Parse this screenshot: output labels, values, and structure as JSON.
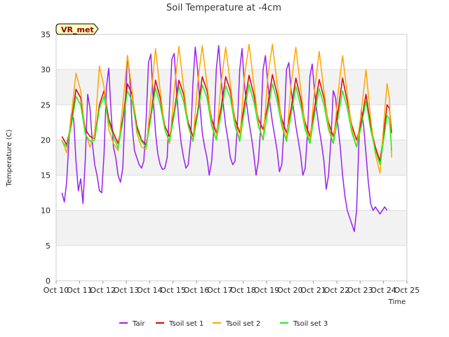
{
  "chart_data": {
    "type": "line",
    "title": "Soil Temperature at -4cm",
    "xlabel": "Time",
    "ylabel": "Temperature (C)",
    "site_badge": "VR_met",
    "ylim": [
      0,
      35
    ],
    "yticks": [
      0,
      5,
      10,
      15,
      20,
      25,
      30,
      35
    ],
    "xlim": [
      10,
      25
    ],
    "xticks": [
      10,
      11,
      12,
      13,
      14,
      15,
      16,
      17,
      18,
      19,
      20,
      21,
      22,
      23,
      24,
      25
    ],
    "xtick_labels": [
      "Oct 10",
      "Oct 11",
      "Oct 12",
      "Oct 13",
      "Oct 14",
      "Oct 15",
      "Oct 16",
      "Oct 17",
      "Oct 18",
      "Oct 19",
      "Oct 20",
      "Oct 21",
      "Oct 22",
      "Oct 23",
      "Oct 24",
      "Oct 25"
    ],
    "shaded_bands": [
      [
        5,
        10
      ],
      [
        15,
        20
      ],
      [
        25,
        30
      ]
    ],
    "legend_position": "bottom",
    "series": [
      {
        "name": "Tair",
        "color": "#9b1ff0",
        "x": [
          10.25,
          10.35,
          10.45,
          10.55,
          10.65,
          10.75,
          10.85,
          10.95,
          11.05,
          11.15,
          11.25,
          11.35,
          11.45,
          11.55,
          11.65,
          11.75,
          11.85,
          11.95,
          12.05,
          12.15,
          12.25,
          12.35,
          12.45,
          12.55,
          12.65,
          12.75,
          12.85,
          12.95,
          13.05,
          13.15,
          13.25,
          13.35,
          13.45,
          13.55,
          13.65,
          13.75,
          13.85,
          13.95,
          14.05,
          14.15,
          14.25,
          14.35,
          14.45,
          14.55,
          14.65,
          14.75,
          14.85,
          14.95,
          15.05,
          15.15,
          15.25,
          15.35,
          15.45,
          15.55,
          15.65,
          15.75,
          15.85,
          15.95,
          16.05,
          16.15,
          16.25,
          16.35,
          16.45,
          16.55,
          16.65,
          16.75,
          16.85,
          16.95,
          17.05,
          17.15,
          17.25,
          17.35,
          17.45,
          17.55,
          17.65,
          17.75,
          17.85,
          17.95,
          18.05,
          18.15,
          18.25,
          18.35,
          18.45,
          18.55,
          18.65,
          18.75,
          18.85,
          18.95,
          19.05,
          19.15,
          19.25,
          19.35,
          19.45,
          19.55,
          19.65,
          19.75,
          19.85,
          19.95,
          20.05,
          20.15,
          20.25,
          20.35,
          20.45,
          20.55,
          20.65,
          20.75,
          20.85,
          20.95,
          21.05,
          21.15,
          21.25,
          21.35,
          21.45,
          21.55,
          21.65,
          21.75,
          21.85,
          21.95,
          22.05,
          22.15,
          22.25,
          22.35,
          22.45,
          22.55,
          22.65,
          22.75,
          22.85,
          22.95,
          23.05,
          23.15,
          23.25,
          23.35,
          23.45,
          23.55,
          23.65,
          23.75,
          23.85,
          23.95,
          24.05,
          24.15
        ],
        "y": [
          12.5,
          11.2,
          14.0,
          20.0,
          23.8,
          23.0,
          17.0,
          12.8,
          14.5,
          11.0,
          17.5,
          26.5,
          24.5,
          19.5,
          16.5,
          15.0,
          12.8,
          12.5,
          18.0,
          27.5,
          30.2,
          24.0,
          19.0,
          17.5,
          15.0,
          14.0,
          16.0,
          24.0,
          32.0,
          29.0,
          22.0,
          18.5,
          17.5,
          16.5,
          16.0,
          17.0,
          23.0,
          31.0,
          32.2,
          26.0,
          21.0,
          18.0,
          16.5,
          15.8,
          16.0,
          17.5,
          25.0,
          31.5,
          32.3,
          27.0,
          22.5,
          19.5,
          17.5,
          16.0,
          16.5,
          20.0,
          28.0,
          33.2,
          30.0,
          25.0,
          21.0,
          19.0,
          17.5,
          15.0,
          17.0,
          22.0,
          30.0,
          33.4,
          29.0,
          25.0,
          22.0,
          20.0,
          17.5,
          16.5,
          17.0,
          22.0,
          30.0,
          33.0,
          28.0,
          25.0,
          22.5,
          20.5,
          18.0,
          15.0,
          17.0,
          22.0,
          30.0,
          32.0,
          28.0,
          25.0,
          22.5,
          20.5,
          18.5,
          15.5,
          16.5,
          22.0,
          30.0,
          31.0,
          27.0,
          24.5,
          22.0,
          20.0,
          18.0,
          15.0,
          16.0,
          21.0,
          29.0,
          30.8,
          27.0,
          24.0,
          21.5,
          19.5,
          17.0,
          13.0,
          15.0,
          20.0,
          27.0,
          26.0,
          22.0,
          19.0,
          15.0,
          12.0,
          10.0,
          9.0,
          8.0,
          7.0,
          10.0,
          20.0,
          24.3,
          22.0,
          18.0,
          14.0,
          11.0,
          10.0,
          10.5,
          10.0,
          9.5,
          10.0,
          10.5,
          10.0
        ],
        "note": ""
      },
      {
        "name": "Tsoil set 1",
        "color": "#e00000",
        "x": [
          10.25,
          10.45,
          10.65,
          10.85,
          11.05,
          11.25,
          11.45,
          11.65,
          11.85,
          12.05,
          12.25,
          12.45,
          12.65,
          12.85,
          13.05,
          13.25,
          13.45,
          13.65,
          13.85,
          14.05,
          14.25,
          14.45,
          14.65,
          14.85,
          15.05,
          15.25,
          15.45,
          15.65,
          15.85,
          16.05,
          16.25,
          16.45,
          16.65,
          16.85,
          17.05,
          17.25,
          17.45,
          17.65,
          17.85,
          18.05,
          18.25,
          18.45,
          18.65,
          18.85,
          19.05,
          19.25,
          19.45,
          19.65,
          19.85,
          20.05,
          20.25,
          20.45,
          20.65,
          20.85,
          21.05,
          21.25,
          21.45,
          21.65,
          21.85,
          22.05,
          22.25,
          22.45,
          22.65,
          22.85,
          23.05,
          23.25,
          23.45,
          23.65,
          23.85,
          24.05,
          24.15,
          24.25,
          24.35
        ],
        "y": [
          20.5,
          19.3,
          22.5,
          27.2,
          26.0,
          21.5,
          20.5,
          20.2,
          25.0,
          27.0,
          23.0,
          21.0,
          19.5,
          23.0,
          28.0,
          26.5,
          22.0,
          20.0,
          19.3,
          23.5,
          28.5,
          26.0,
          22.0,
          20.5,
          24.0,
          28.5,
          26.5,
          22.5,
          20.5,
          24.0,
          29.0,
          27.0,
          23.0,
          21.0,
          24.5,
          29.0,
          27.0,
          23.0,
          21.0,
          25.0,
          29.2,
          26.5,
          23.0,
          21.5,
          25.0,
          29.3,
          26.5,
          23.0,
          21.0,
          24.5,
          28.8,
          26.0,
          22.5,
          20.5,
          24.5,
          28.6,
          26.0,
          22.5,
          20.5,
          24.0,
          28.8,
          25.5,
          22.0,
          20.0,
          22.5,
          26.5,
          22.0,
          19.0,
          17.0,
          22.0,
          25.0,
          24.5,
          21.0
        ],
        "note": ""
      },
      {
        "name": "Tsoil set 2",
        "color": "#ffa500",
        "x": [
          10.25,
          10.45,
          10.65,
          10.85,
          11.05,
          11.25,
          11.45,
          11.65,
          11.85,
          12.05,
          12.25,
          12.45,
          12.65,
          12.85,
          13.05,
          13.25,
          13.45,
          13.65,
          13.85,
          14.05,
          14.25,
          14.45,
          14.65,
          14.85,
          15.05,
          15.25,
          15.45,
          15.65,
          15.85,
          16.05,
          16.25,
          16.45,
          16.65,
          16.85,
          17.05,
          17.25,
          17.45,
          17.65,
          17.85,
          18.05,
          18.25,
          18.45,
          18.65,
          18.85,
          19.05,
          19.25,
          19.45,
          19.65,
          19.85,
          20.05,
          20.25,
          20.45,
          20.65,
          20.85,
          21.05,
          21.25,
          21.45,
          21.65,
          21.85,
          22.05,
          22.25,
          22.45,
          22.65,
          22.85,
          23.05,
          23.25,
          23.45,
          23.65,
          23.85,
          24.05,
          24.15,
          24.25,
          24.35
        ],
        "y": [
          20.0,
          18.2,
          23.5,
          29.5,
          27.0,
          21.0,
          19.0,
          21.0,
          30.5,
          27.5,
          21.5,
          19.5,
          18.5,
          25.0,
          32.0,
          27.0,
          21.0,
          19.0,
          18.7,
          26.0,
          33.0,
          27.0,
          21.5,
          19.5,
          27.0,
          33.3,
          27.5,
          22.0,
          19.8,
          28.0,
          33.4,
          28.0,
          22.5,
          20.0,
          28.0,
          33.2,
          28.0,
          22.5,
          20.0,
          29.0,
          33.6,
          28.0,
          22.5,
          20.0,
          29.0,
          33.6,
          28.0,
          22.5,
          20.0,
          28.0,
          33.2,
          27.5,
          22.0,
          19.8,
          27.0,
          32.6,
          27.0,
          22.0,
          19.5,
          26.5,
          32.0,
          26.5,
          21.5,
          19.0,
          24.0,
          30.0,
          23.0,
          18.0,
          15.3,
          24.0,
          28.0,
          26.0,
          17.5
        ],
        "note": ""
      },
      {
        "name": "Tsoil set 3",
        "color": "#22ee22",
        "x": [
          10.25,
          10.45,
          10.65,
          10.85,
          11.05,
          11.25,
          11.45,
          11.65,
          11.85,
          12.05,
          12.25,
          12.45,
          12.65,
          12.85,
          13.05,
          13.25,
          13.45,
          13.65,
          13.85,
          14.05,
          14.25,
          14.45,
          14.65,
          14.85,
          15.05,
          15.25,
          15.45,
          15.65,
          15.85,
          16.05,
          16.25,
          16.45,
          16.65,
          16.85,
          17.05,
          17.25,
          17.45,
          17.65,
          17.85,
          18.05,
          18.25,
          18.45,
          18.65,
          18.85,
          19.05,
          19.25,
          19.45,
          19.65,
          19.85,
          20.05,
          20.25,
          20.45,
          20.65,
          20.85,
          21.05,
          21.25,
          21.45,
          21.65,
          21.85,
          22.05,
          22.25,
          22.45,
          22.65,
          22.85,
          23.05,
          23.25,
          23.45,
          23.65,
          23.85,
          24.05,
          24.15,
          24.25,
          24.35
        ],
        "y": [
          19.8,
          19.0,
          22.0,
          26.2,
          25.0,
          20.8,
          19.8,
          20.0,
          24.5,
          26.2,
          22.5,
          20.5,
          18.8,
          22.5,
          27.0,
          25.5,
          21.5,
          19.8,
          19.0,
          23.0,
          27.4,
          25.0,
          21.5,
          19.8,
          23.5,
          27.6,
          25.5,
          22.0,
          19.8,
          23.5,
          27.8,
          26.0,
          22.0,
          20.0,
          23.5,
          27.7,
          26.0,
          22.0,
          19.8,
          24.0,
          27.9,
          25.5,
          22.0,
          20.0,
          24.0,
          28.0,
          25.5,
          22.0,
          19.8,
          23.5,
          27.6,
          25.0,
          21.5,
          19.5,
          23.5,
          27.3,
          25.0,
          21.5,
          19.5,
          23.0,
          27.0,
          24.5,
          21.0,
          19.0,
          22.0,
          25.5,
          21.5,
          18.5,
          16.5,
          21.0,
          23.5,
          23.0,
          18.5
        ],
        "note": ""
      }
    ]
  }
}
